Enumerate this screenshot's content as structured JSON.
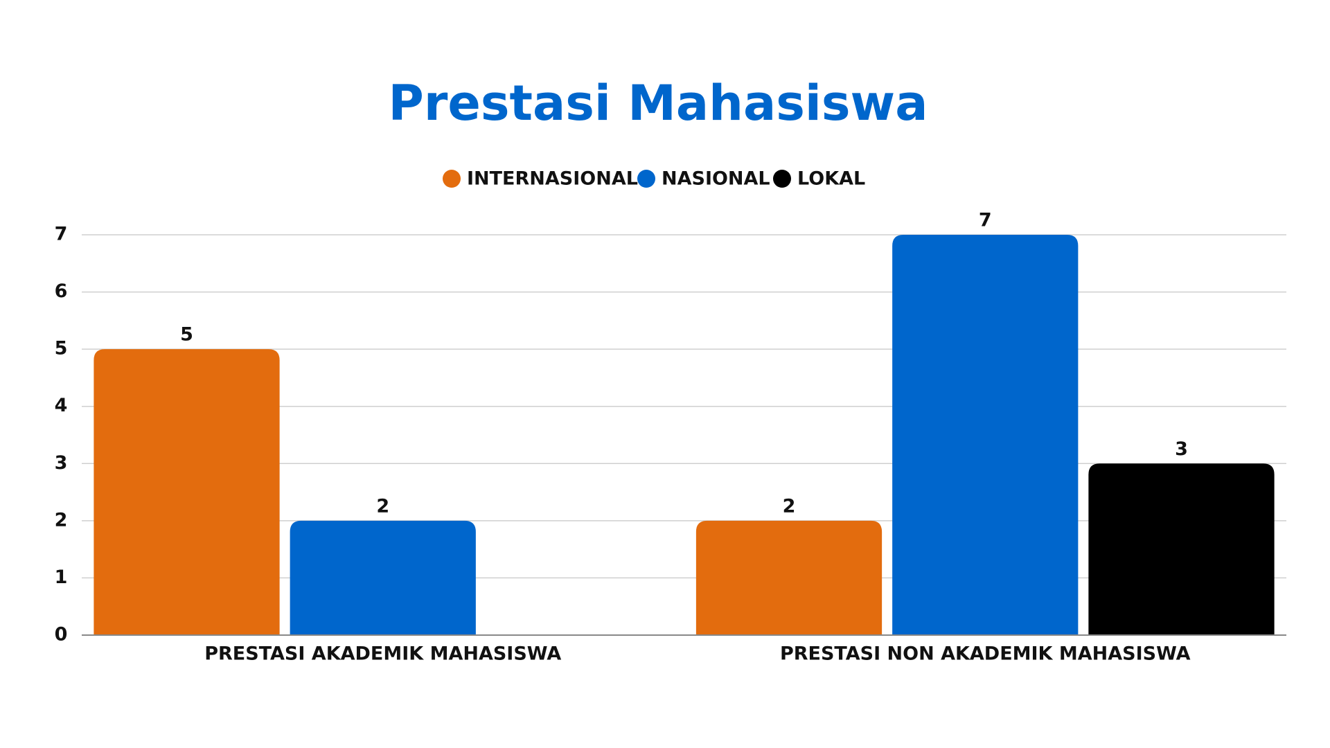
{
  "chart_data": {
    "type": "bar",
    "title": "Prestasi Mahasiswa",
    "categories": [
      "PRESTASI AKADEMIK MAHASISWA",
      "PRESTASI NON AKADEMIK MAHASISWA"
    ],
    "series": [
      {
        "name": "INTERNASIONAL",
        "color": "#e36c0e",
        "values": [
          5,
          2
        ]
      },
      {
        "name": "NASIONAL",
        "color": "#0066cc",
        "values": [
          2,
          7
        ]
      },
      {
        "name": "LOKAL",
        "color": "#000000",
        "values": [
          null,
          3
        ]
      }
    ],
    "ylim": [
      0,
      7
    ],
    "yticks": [
      0,
      1,
      2,
      3,
      4,
      5,
      6,
      7
    ],
    "grid": true,
    "legend": "top"
  }
}
